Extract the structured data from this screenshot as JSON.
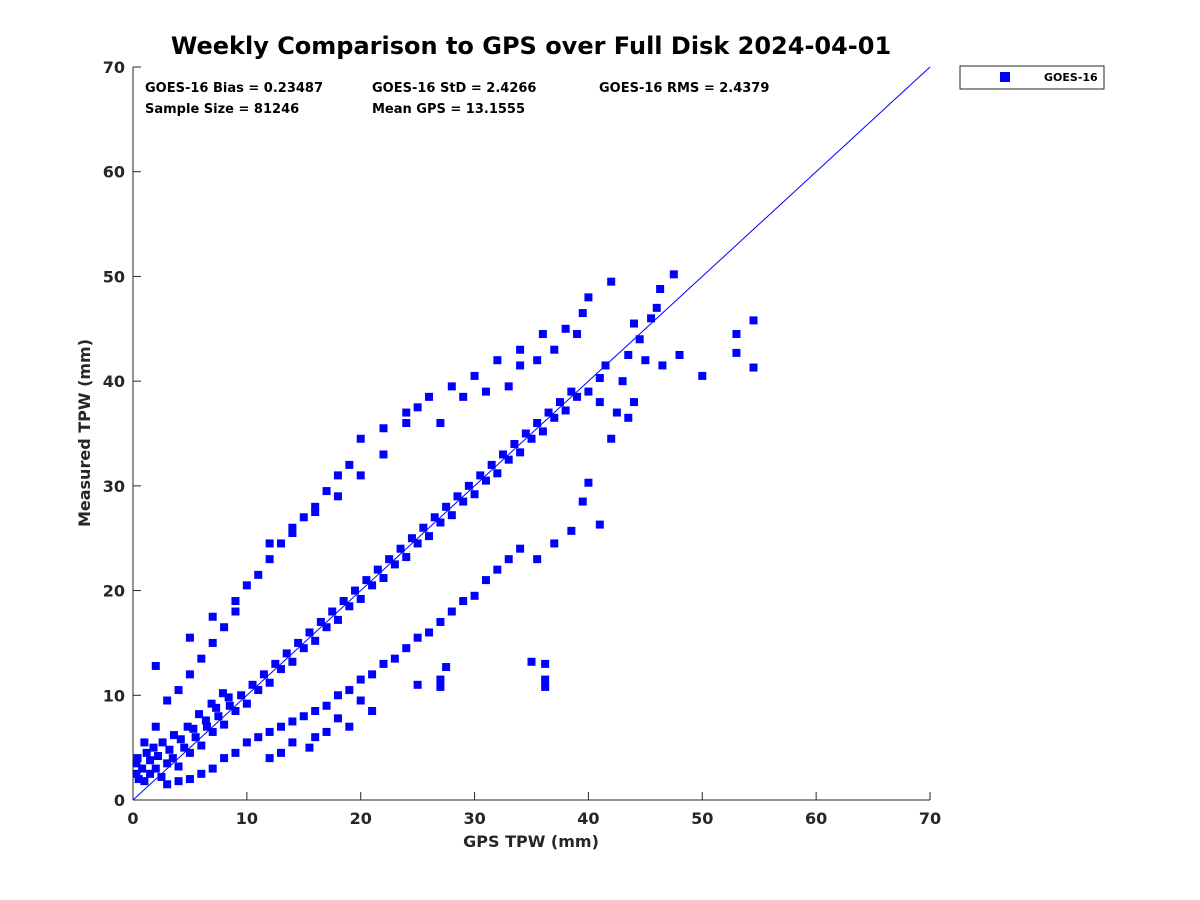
{
  "chart_data": {
    "type": "scatter",
    "title": "Weekly Comparison to GPS over Full Disk 2024-04-01",
    "xlabel": "GPS TPW (mm)",
    "ylabel": "Measured TPW (mm)",
    "xlim": [
      0,
      70
    ],
    "ylim": [
      0,
      70
    ],
    "xticks": [
      "0",
      "10",
      "20",
      "30",
      "40",
      "50",
      "60",
      "70"
    ],
    "yticks": [
      "0",
      "10",
      "20",
      "30",
      "40",
      "50",
      "60",
      "70"
    ],
    "grid": false,
    "legend_position": "outside-top-right",
    "reference_line": {
      "from": [
        0,
        0
      ],
      "to": [
        70,
        70
      ],
      "color": "#0000ff"
    },
    "stats": {
      "bias": "GOES-16 Bias = 0.23487",
      "std": "GOES-16 StD = 2.4266",
      "rms": "GOES-16 RMS = 2.4379",
      "sample_size": "Sample Size = 81246",
      "mean_gps": "Mean GPS = 13.1555"
    },
    "series": [
      {
        "name": "GOES-16",
        "color": "#0000ff",
        "marker": "square",
        "points": [
          [
            0.5,
            2.0
          ],
          [
            1.0,
            1.8
          ],
          [
            1.5,
            2.5
          ],
          [
            2.0,
            3.0
          ],
          [
            2.5,
            2.2
          ],
          [
            3.0,
            3.5
          ],
          [
            3.5,
            4.0
          ],
          [
            4.0,
            3.2
          ],
          [
            4.5,
            5.0
          ],
          [
            5.0,
            4.5
          ],
          [
            5.5,
            6.0
          ],
          [
            6.0,
            5.2
          ],
          [
            6.5,
            7.0
          ],
          [
            7.0,
            6.5
          ],
          [
            7.5,
            8.0
          ],
          [
            8.0,
            7.2
          ],
          [
            8.5,
            9.0
          ],
          [
            9.0,
            8.5
          ],
          [
            9.5,
            10.0
          ],
          [
            10.0,
            9.2
          ],
          [
            10.5,
            11.0
          ],
          [
            11.0,
            10.5
          ],
          [
            11.5,
            12.0
          ],
          [
            12.0,
            11.2
          ],
          [
            12.5,
            13.0
          ],
          [
            13.0,
            12.5
          ],
          [
            13.5,
            14.0
          ],
          [
            14.0,
            13.2
          ],
          [
            14.5,
            15.0
          ],
          [
            15.0,
            14.5
          ],
          [
            15.5,
            16.0
          ],
          [
            16.0,
            15.2
          ],
          [
            16.5,
            17.0
          ],
          [
            17.0,
            16.5
          ],
          [
            17.5,
            18.0
          ],
          [
            18.0,
            17.2
          ],
          [
            18.5,
            19.0
          ],
          [
            19.0,
            18.5
          ],
          [
            19.5,
            20.0
          ],
          [
            20.0,
            19.2
          ],
          [
            20.5,
            21.0
          ],
          [
            21.0,
            20.5
          ],
          [
            21.5,
            22.0
          ],
          [
            22.0,
            21.2
          ],
          [
            22.5,
            23.0
          ],
          [
            23.0,
            22.5
          ],
          [
            23.5,
            24.0
          ],
          [
            24.0,
            23.2
          ],
          [
            24.5,
            25.0
          ],
          [
            25.0,
            24.5
          ],
          [
            25.5,
            26.0
          ],
          [
            26.0,
            25.2
          ],
          [
            26.5,
            27.0
          ],
          [
            27.0,
            26.5
          ],
          [
            27.5,
            28.0
          ],
          [
            28.0,
            27.2
          ],
          [
            28.5,
            29.0
          ],
          [
            29.0,
            28.5
          ],
          [
            29.5,
            30.0
          ],
          [
            30.0,
            29.2
          ],
          [
            30.5,
            31.0
          ],
          [
            31.0,
            30.5
          ],
          [
            31.5,
            32.0
          ],
          [
            32.0,
            31.2
          ],
          [
            32.5,
            33.0
          ],
          [
            33.0,
            32.5
          ],
          [
            33.5,
            34.0
          ],
          [
            34.0,
            33.2
          ],
          [
            34.5,
            35.0
          ],
          [
            35.0,
            34.5
          ],
          [
            35.5,
            36.0
          ],
          [
            36.0,
            35.2
          ],
          [
            36.5,
            37.0
          ],
          [
            37.0,
            36.5
          ],
          [
            37.5,
            38.0
          ],
          [
            38.0,
            37.2
          ],
          [
            38.5,
            39.0
          ],
          [
            39.0,
            38.5
          ],
          [
            40.0,
            39.0
          ],
          [
            41.0,
            38.0
          ],
          [
            1.0,
            5.5
          ],
          [
            2.0,
            7.0
          ],
          [
            3.0,
            9.5
          ],
          [
            4.0,
            10.5
          ],
          [
            5.0,
            12.0
          ],
          [
            6.0,
            13.5
          ],
          [
            7.0,
            15.0
          ],
          [
            8.0,
            16.5
          ],
          [
            9.0,
            18.0
          ],
          [
            10.0,
            20.5
          ],
          [
            11.0,
            21.5
          ],
          [
            12.0,
            23.0
          ],
          [
            13.0,
            24.5
          ],
          [
            14.0,
            25.5
          ],
          [
            15.0,
            27.0
          ],
          [
            16.0,
            28.0
          ],
          [
            17.0,
            29.5
          ],
          [
            18.0,
            31.0
          ],
          [
            19.0,
            32.0
          ],
          [
            20.0,
            34.5
          ],
          [
            22.0,
            35.5
          ],
          [
            24.0,
            37.0
          ],
          [
            26.0,
            38.5
          ],
          [
            28.0,
            39.5
          ],
          [
            30.0,
            40.5
          ],
          [
            32.0,
            42.0
          ],
          [
            34.0,
            43.0
          ],
          [
            36.0,
            44.5
          ],
          [
            38.0,
            45.0
          ],
          [
            40.0,
            48.0
          ],
          [
            42.0,
            49.5
          ],
          [
            44.0,
            45.5
          ],
          [
            46.0,
            47.0
          ],
          [
            47.5,
            50.2
          ],
          [
            43.0,
            40.0
          ],
          [
            45.0,
            42.0
          ],
          [
            46.5,
            41.5
          ],
          [
            48.0,
            42.5
          ],
          [
            50.0,
            40.5
          ],
          [
            53.0,
            44.5
          ],
          [
            53.0,
            42.7
          ],
          [
            54.5,
            45.8
          ],
          [
            54.5,
            41.3
          ],
          [
            42.0,
            34.5
          ],
          [
            40.0,
            30.3
          ],
          [
            39.5,
            28.5
          ],
          [
            41.0,
            26.3
          ],
          [
            38.5,
            25.7
          ],
          [
            37.0,
            24.5
          ],
          [
            35.5,
            23.0
          ],
          [
            3.0,
            1.5
          ],
          [
            4.0,
            1.8
          ],
          [
            5.0,
            2.0
          ],
          [
            6.0,
            2.5
          ],
          [
            7.0,
            3.0
          ],
          [
            8.0,
            4.0
          ],
          [
            9.0,
            4.5
          ],
          [
            10.0,
            5.5
          ],
          [
            11.0,
            6.0
          ],
          [
            12.0,
            6.5
          ],
          [
            13.0,
            7.0
          ],
          [
            14.0,
            7.5
          ],
          [
            15.0,
            8.0
          ],
          [
            16.0,
            8.5
          ],
          [
            17.0,
            9.0
          ],
          [
            18.0,
            10.0
          ],
          [
            19.0,
            10.5
          ],
          [
            20.0,
            11.5
          ],
          [
            21.0,
            12.0
          ],
          [
            22.0,
            13.0
          ],
          [
            23.0,
            13.5
          ],
          [
            24.0,
            14.5
          ],
          [
            25.0,
            15.5
          ],
          [
            26.0,
            16.0
          ],
          [
            27.0,
            17.0
          ],
          [
            28.0,
            18.0
          ],
          [
            29.0,
            19.0
          ],
          [
            30.0,
            19.5
          ],
          [
            31.0,
            21.0
          ],
          [
            32.0,
            22.0
          ],
          [
            33.0,
            23.0
          ],
          [
            34.0,
            24.0
          ],
          [
            35.0,
            13.2
          ],
          [
            36.2,
            13.0
          ],
          [
            36.2,
            11.5
          ],
          [
            36.2,
            10.8
          ],
          [
            27.5,
            12.7
          ],
          [
            27.0,
            11.5
          ],
          [
            27.0,
            10.8
          ],
          [
            25.0,
            11.0
          ],
          [
            21.0,
            8.5
          ],
          [
            20.0,
            9.5
          ],
          [
            19.0,
            7.0
          ],
          [
            18.0,
            7.8
          ],
          [
            17.0,
            6.5
          ],
          [
            16.0,
            6.0
          ],
          [
            15.5,
            5.0
          ],
          [
            14.0,
            5.5
          ],
          [
            13.0,
            4.5
          ],
          [
            12.0,
            4.0
          ],
          [
            2.0,
            12.8
          ],
          [
            5.0,
            15.5
          ],
          [
            7.0,
            17.5
          ],
          [
            9.0,
            19.0
          ],
          [
            12.0,
            24.5
          ],
          [
            14.0,
            26.0
          ],
          [
            16.0,
            27.5
          ],
          [
            18.0,
            29.0
          ],
          [
            20.0,
            31.0
          ],
          [
            22.0,
            33.0
          ],
          [
            24.0,
            36.0
          ],
          [
            25.0,
            37.5
          ],
          [
            27.0,
            36.0
          ],
          [
            29.0,
            38.5
          ],
          [
            31.0,
            39.0
          ],
          [
            33.0,
            39.5
          ],
          [
            34.0,
            41.5
          ],
          [
            35.5,
            42.0
          ],
          [
            37.0,
            43.0
          ],
          [
            39.0,
            44.5
          ],
          [
            41.5,
            41.5
          ],
          [
            44.5,
            44.0
          ],
          [
            45.5,
            46.0
          ],
          [
            46.3,
            48.8
          ],
          [
            39.5,
            46.5
          ],
          [
            43.5,
            42.5
          ],
          [
            43.5,
            36.5
          ],
          [
            42.5,
            37.0
          ],
          [
            41.0,
            40.3
          ],
          [
            44.0,
            38.0
          ],
          [
            0.3,
            2.5
          ],
          [
            0.3,
            3.5
          ],
          [
            0.4,
            4.0
          ],
          [
            0.8,
            3.0
          ],
          [
            1.2,
            4.5
          ],
          [
            1.5,
            3.8
          ],
          [
            1.8,
            5.0
          ],
          [
            2.2,
            4.2
          ],
          [
            2.6,
            5.5
          ],
          [
            3.2,
            4.8
          ],
          [
            3.6,
            6.2
          ],
          [
            4.2,
            5.8
          ],
          [
            4.8,
            7.0
          ],
          [
            5.3,
            6.8
          ],
          [
            5.8,
            8.2
          ],
          [
            6.4,
            7.6
          ],
          [
            6.9,
            9.2
          ],
          [
            7.3,
            8.8
          ],
          [
            7.9,
            10.2
          ],
          [
            8.4,
            9.8
          ]
        ]
      }
    ]
  }
}
